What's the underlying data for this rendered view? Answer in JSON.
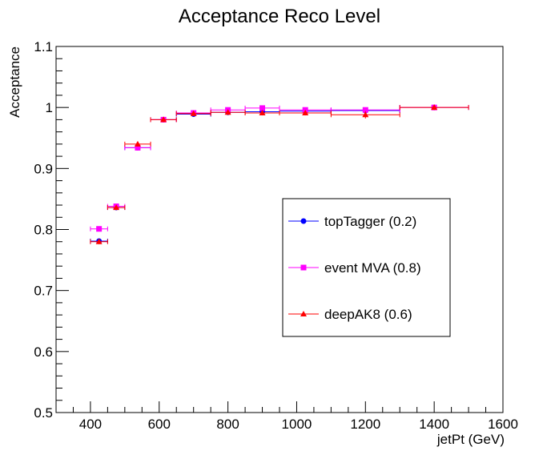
{
  "chart_data": {
    "type": "scatter",
    "title": "Acceptance Reco Level",
    "xlabel": "jetPt (GeV)",
    "ylabel": "Acceptance",
    "xlim": [
      300,
      1600
    ],
    "ylim": [
      0.5,
      1.1
    ],
    "x_major_ticks": [
      400,
      600,
      800,
      1000,
      1200,
      1400,
      1600
    ],
    "y_major_ticks": [
      0.5,
      0.6,
      0.7,
      0.8,
      0.9,
      1,
      1.1
    ],
    "x_tick_labels": [
      "400",
      "600",
      "800",
      "1000",
      "1200",
      "1400",
      "1600"
    ],
    "y_tick_labels": [
      "0.5",
      "0.6",
      "0.7",
      "0.8",
      "0.9",
      "1",
      "1.1"
    ],
    "grid": false,
    "legend_position": "middle-right",
    "series": [
      {
        "name": "topTagger (0.2)",
        "color": "#0000ff",
        "marker": "circle",
        "points": [
          {
            "x": 425,
            "xlo": 400,
            "xhi": 450,
            "y": 0.781
          },
          {
            "x": 475,
            "xlo": 450,
            "xhi": 500,
            "y": 0.836
          },
          {
            "x": 537.5,
            "xlo": 500,
            "xhi": 575,
            "y": 0.934
          },
          {
            "x": 612.5,
            "xlo": 575,
            "xhi": 650,
            "y": 0.98
          },
          {
            "x": 700,
            "xlo": 650,
            "xhi": 750,
            "y": 0.989
          },
          {
            "x": 800,
            "xlo": 750,
            "xhi": 850,
            "y": 0.992
          },
          {
            "x": 900,
            "xlo": 850,
            "xhi": 950,
            "y": 0.993
          },
          {
            "x": 1025,
            "xlo": 950,
            "xhi": 1100,
            "y": 0.994
          },
          {
            "x": 1200,
            "xlo": 1100,
            "xhi": 1300,
            "y": 0.995
          },
          {
            "x": 1400,
            "xlo": 1300,
            "xhi": 1500,
            "y": 1.0
          }
        ]
      },
      {
        "name": "event MVA (0.8)",
        "color": "#ff00ff",
        "marker": "square",
        "points": [
          {
            "x": 425,
            "xlo": 400,
            "xhi": 450,
            "y": 0.801
          },
          {
            "x": 475,
            "xlo": 450,
            "xhi": 500,
            "y": 0.838
          },
          {
            "x": 537.5,
            "xlo": 500,
            "xhi": 575,
            "y": 0.934
          },
          {
            "x": 612.5,
            "xlo": 575,
            "xhi": 650,
            "y": 0.98
          },
          {
            "x": 700,
            "xlo": 650,
            "xhi": 750,
            "y": 0.991
          },
          {
            "x": 800,
            "xlo": 750,
            "xhi": 850,
            "y": 0.996
          },
          {
            "x": 900,
            "xlo": 850,
            "xhi": 950,
            "y": 0.999
          },
          {
            "x": 1025,
            "xlo": 950,
            "xhi": 1100,
            "y": 0.996
          },
          {
            "x": 1200,
            "xlo": 1100,
            "xhi": 1300,
            "y": 0.996
          },
          {
            "x": 1400,
            "xlo": 1300,
            "xhi": 1500,
            "y": 1.0
          }
        ]
      },
      {
        "name": "deepAK8 (0.6)",
        "color": "#ff0000",
        "marker": "triangle",
        "points": [
          {
            "x": 425,
            "xlo": 400,
            "xhi": 450,
            "y": 0.78,
            "yerr": 0.004
          },
          {
            "x": 475,
            "xlo": 450,
            "xhi": 500,
            "y": 0.836,
            "yerr": 0.004
          },
          {
            "x": 537.5,
            "xlo": 500,
            "xhi": 575,
            "y": 0.94,
            "yerr": 0.004
          },
          {
            "x": 612.5,
            "xlo": 575,
            "xhi": 650,
            "y": 0.98,
            "yerr": 0.004
          },
          {
            "x": 700,
            "xlo": 650,
            "xhi": 750,
            "y": 0.99,
            "yerr": 0.004
          },
          {
            "x": 800,
            "xlo": 750,
            "xhi": 850,
            "y": 0.992,
            "yerr": 0.004
          },
          {
            "x": 900,
            "xlo": 850,
            "xhi": 950,
            "y": 0.991,
            "yerr": 0.004
          },
          {
            "x": 1025,
            "xlo": 950,
            "xhi": 1100,
            "y": 0.991,
            "yerr": 0.004
          },
          {
            "x": 1200,
            "xlo": 1100,
            "xhi": 1300,
            "y": 0.988,
            "yerr": 0.006
          },
          {
            "x": 1400,
            "xlo": 1300,
            "xhi": 1500,
            "y": 1.0,
            "yerr": 0.004
          }
        ]
      }
    ]
  }
}
